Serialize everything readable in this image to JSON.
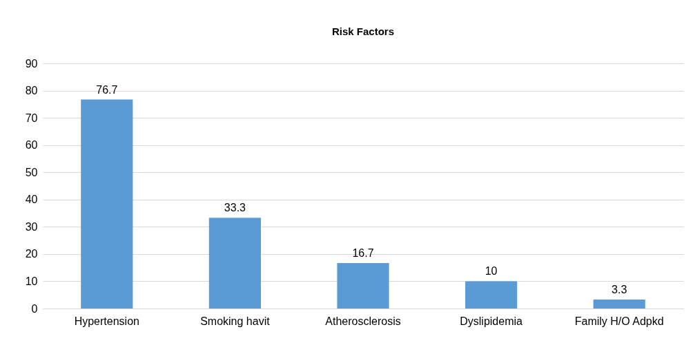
{
  "chart_data": {
    "type": "bar",
    "title": "Risk Factors",
    "categories": [
      "Hypertension",
      "Smoking havit",
      "Atherosclerosis",
      "Dyslipidemia",
      "Family H/O Adpkd"
    ],
    "values": [
      76.7,
      33.3,
      16.7,
      10,
      3.3
    ],
    "color": "#5b9bd5",
    "ylim": [
      0,
      90
    ],
    "yticks": [
      0,
      10,
      20,
      30,
      40,
      50,
      60,
      70,
      80,
      90
    ],
    "grid": "y",
    "data_labels": true
  }
}
